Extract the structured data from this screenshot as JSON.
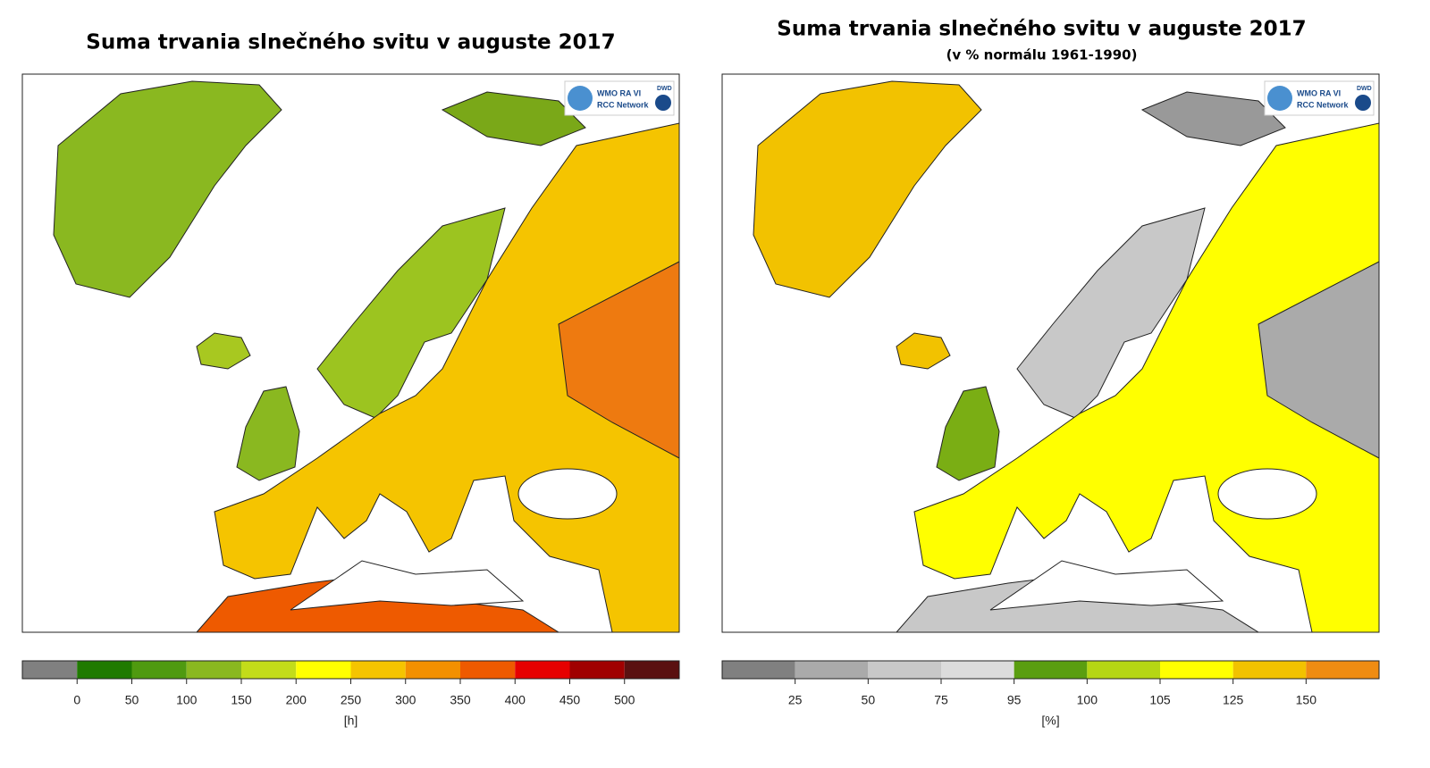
{
  "maps": [
    {
      "title": "Suma trvania slnečného svitu v auguste 2017",
      "logo": {
        "name": "WMO RA VI",
        "network": "RCC Network",
        "dwd": "DWD"
      },
      "legend": {
        "colors": [
          "#808080",
          "#1f7a00",
          "#4f9a10",
          "#8ab820",
          "#c3dc1a",
          "#ffff00",
          "#f5c400",
          "#f39000",
          "#ee5a00",
          "#e60000",
          "#a00000",
          "#5a1010"
        ],
        "ticks": [
          0,
          50,
          100,
          150,
          200,
          250,
          300,
          350,
          400,
          450,
          500
        ],
        "unit": "[h]"
      }
    },
    {
      "title": "Suma trvania slnečného svitu v auguste 2017",
      "subtitle": "(v % normálu 1961-1990)",
      "logo": {
        "name": "WMO RA VI",
        "network": "RCC Network",
        "dwd": "DWD"
      },
      "legend": {
        "colors": [
          "#808080",
          "#aaaaaa",
          "#c8c8c8",
          "#dcdcdc",
          "#5a9e10",
          "#b5d614",
          "#ffff00",
          "#f2c200",
          "#ef8c12"
        ],
        "ticks": [
          25,
          50,
          75,
          95,
          100,
          105,
          125,
          150
        ],
        "unit": "[%]"
      }
    }
  ]
}
